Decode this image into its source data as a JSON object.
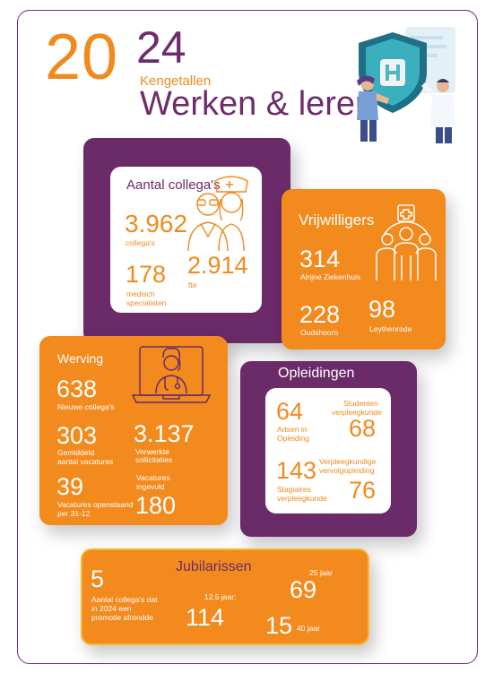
{
  "header": {
    "year_a": "20",
    "year_b": "24",
    "kicker": "Kengetallen",
    "title": "Werken & leren"
  },
  "collegas": {
    "title": "Aantal collega's",
    "count": "3.962",
    "count_label": "collega's",
    "medical": "178",
    "medical_label_1": "medisch",
    "medical_label_2": "specialisten",
    "fte": "2.914",
    "fte_label": "fte"
  },
  "vrijwilligers": {
    "title": "Vrijwilligers",
    "alrijne": "314",
    "alrijne_label": "Alrijne Ziekenhuis",
    "oudshoorn": "228",
    "oudshoorn_label": "Oudshoorn",
    "leythenrode": "98",
    "leythenrode_label": "Leythenrode"
  },
  "werving": {
    "title": "Werving",
    "new": "638",
    "new_label": "Nieuwe collega's",
    "vacatures": "303",
    "vacatures_label_1": "Gemiddeld",
    "vacatures_label_2": "aantal vacatures",
    "sollicitaties": "3.137",
    "sollicitaties_label_1": "Verwerkte",
    "sollicitaties_label_2": "sollicitaties",
    "open": "39",
    "open_label_1": "Vacatures openstaand",
    "open_label_2": "per 31-12",
    "ingevuld": "180",
    "ingevuld_label_1": "Vacatures",
    "ingevuld_label_2": "ingevuld"
  },
  "opleidingen": {
    "title": "Opleidingen",
    "artsen": "64",
    "artsen_label_1": "Artsen in",
    "artsen_label_2": "Opleiding",
    "studenten": "68",
    "studenten_label_1": "Studenten",
    "studenten_label_2": "verpleegkunde",
    "stagiaires": "143",
    "stagiaires_label_1": "Stagiaires",
    "stagiaires_label_2": "verpleegkunde",
    "vervolg": "76",
    "vervolg_label_1": "Verpleegkundige",
    "vervolg_label_2": "vervolgopleiding"
  },
  "jubilarissen": {
    "title": "Jubilarissen",
    "promotie": "5",
    "promotie_label_1": "Aantal collega's dat",
    "promotie_label_2": "in 2024 een",
    "promotie_label_3": "promotie afrondde",
    "j125": "114",
    "j125_label": "12,5 jaar:",
    "j25": "69",
    "j25_label": "25 jaar",
    "j40": "15",
    "j40_label": "40 jaar"
  },
  "colors": {
    "purple": "#6b2a68",
    "orange": "#f08a1c"
  },
  "icons": {
    "hero": "hospital-shield-doctor-illustration",
    "collegas": "doctor-nurse-icon",
    "vrijwilligers": "volunteers-cross-icon",
    "werving": "laptop-doctor-icon"
  }
}
